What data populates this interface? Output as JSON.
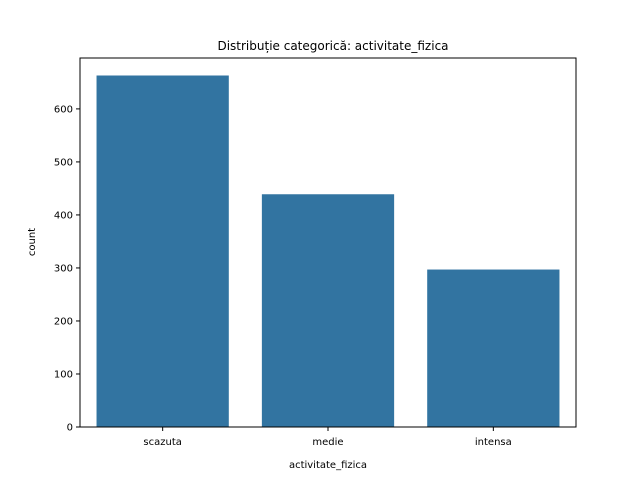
{
  "chart_data": {
    "type": "bar",
    "title": "Distribuție categorică: activitate_fizica",
    "xlabel": "activitate_fizica",
    "ylabel": "count",
    "categories": [
      "scazuta",
      "medie",
      "intensa"
    ],
    "values": [
      663,
      439,
      297
    ],
    "ylim": [
      0,
      696
    ],
    "yticks": [
      0,
      100,
      200,
      300,
      400,
      500,
      600
    ],
    "bar_color": "#3274a1",
    "grid": false,
    "legend": "none"
  }
}
